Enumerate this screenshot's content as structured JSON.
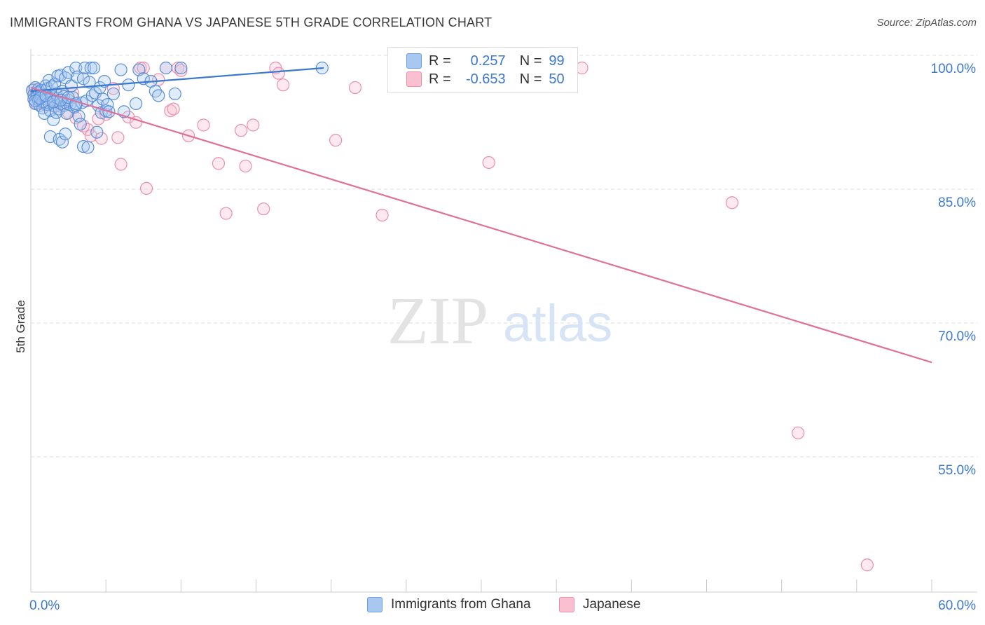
{
  "header": {
    "title": "IMMIGRANTS FROM GHANA VS JAPANESE 5TH GRADE CORRELATION CHART",
    "source": "Source: ZipAtlas.com"
  },
  "legend": {
    "rows": [
      {
        "r_label": "R =",
        "r_value": "0.257",
        "n_label": "N =",
        "n_value": "99",
        "color": "#a8c8f0",
        "border": "#6a9ee0"
      },
      {
        "r_label": "R =",
        "r_value": "-0.653",
        "n_label": "N =",
        "n_value": "50",
        "color": "#f8c0d0",
        "border": "#e890ab"
      }
    ]
  },
  "bottom_legend": [
    {
      "label": "Immigrants from Ghana",
      "color": "#a8c8f0",
      "border": "#6a9ee0"
    },
    {
      "label": "Japanese",
      "color": "#f8c0d0",
      "border": "#e890ab"
    }
  ],
  "watermark": {
    "zip": "ZIP",
    "atlas": "atlas"
  },
  "chart_data": {
    "type": "scatter",
    "title": "IMMIGRANTS FROM GHANA VS JAPANESE 5TH GRADE CORRELATION CHART",
    "xlabel": "",
    "ylabel": "5th Grade",
    "xlim": [
      0,
      60
    ],
    "ylim": [
      40,
      101
    ],
    "x_tick_labels": [
      "0.0%",
      "60.0%"
    ],
    "y_ticks": [
      55,
      70,
      85,
      100
    ],
    "y_tick_labels": [
      "55.0%",
      "70.0%",
      "85.0%",
      "100.0%"
    ],
    "grid": true,
    "colors": {
      "blue": "#3a78d0",
      "pink": "#e07098",
      "axis_text": "#3a78d0"
    },
    "series": [
      {
        "name": "Immigrants from Ghana",
        "color": "#6a9ee0",
        "trend": {
          "x": [
            0,
            19.5
          ],
          "y": [
            97.4,
            100.0
          ],
          "color": "#3a78d0"
        },
        "points": [
          [
            0.1,
            97.5
          ],
          [
            0.2,
            97.0
          ],
          [
            0.2,
            96.5
          ],
          [
            0.3,
            97.8
          ],
          [
            0.3,
            96.0
          ],
          [
            0.4,
            97.2
          ],
          [
            0.4,
            96.8
          ],
          [
            0.5,
            97.6
          ],
          [
            0.5,
            96.4
          ],
          [
            0.6,
            97.3
          ],
          [
            0.6,
            95.8
          ],
          [
            0.7,
            96.9
          ],
          [
            0.7,
            97.5
          ],
          [
            0.8,
            96.2
          ],
          [
            0.8,
            95.5
          ],
          [
            0.9,
            97.0
          ],
          [
            0.9,
            94.9
          ],
          [
            1.0,
            96.5
          ],
          [
            1.0,
            98.0
          ],
          [
            1.1,
            95.9
          ],
          [
            1.1,
            97.7
          ],
          [
            1.2,
            96.1
          ],
          [
            1.2,
            98.6
          ],
          [
            1.3,
            95.2
          ],
          [
            1.3,
            92.3
          ],
          [
            1.4,
            96.8
          ],
          [
            1.4,
            97.9
          ],
          [
            1.5,
            94.2
          ],
          [
            1.5,
            96.3
          ],
          [
            1.6,
            95.7
          ],
          [
            1.6,
            98.2
          ],
          [
            1.7,
            97.1
          ],
          [
            1.7,
            95.0
          ],
          [
            1.8,
            96.6
          ],
          [
            1.8,
            99.1
          ],
          [
            1.9,
            92.0
          ],
          [
            1.9,
            95.4
          ],
          [
            2.0,
            99.2
          ],
          [
            2.0,
            96.0
          ],
          [
            2.1,
            91.7
          ],
          [
            2.1,
            97.4
          ],
          [
            2.2,
            95.8
          ],
          [
            2.2,
            96.8
          ],
          [
            2.3,
            92.6
          ],
          [
            2.3,
            98.9
          ],
          [
            2.4,
            96.0
          ],
          [
            2.4,
            94.9
          ],
          [
            2.5,
            96.4
          ],
          [
            2.5,
            99.5
          ],
          [
            2.6,
            95.9
          ],
          [
            2.7,
            98.0
          ],
          [
            2.8,
            96.7
          ],
          [
            2.9,
            95.6
          ],
          [
            3.0,
            100.0
          ],
          [
            3.0,
            95.8
          ],
          [
            3.1,
            99.0
          ],
          [
            3.2,
            94.6
          ],
          [
            3.3,
            93.7
          ],
          [
            3.4,
            96.1
          ],
          [
            3.5,
            91.2
          ],
          [
            3.5,
            98.8
          ],
          [
            3.6,
            100.0
          ],
          [
            3.7,
            96.3
          ],
          [
            3.8,
            91.1
          ],
          [
            3.9,
            98.4
          ],
          [
            4.0,
            100.0
          ],
          [
            4.1,
            96.9
          ],
          [
            4.2,
            100.0
          ],
          [
            4.3,
            97.2
          ],
          [
            4.4,
            92.8
          ],
          [
            4.5,
            95.8
          ],
          [
            4.6,
            97.8
          ],
          [
            4.7,
            95.0
          ],
          [
            4.8,
            96.5
          ],
          [
            4.9,
            98.5
          ],
          [
            5.0,
            95.2
          ],
          [
            5.1,
            95.9
          ],
          [
            5.2,
            95.1
          ],
          [
            5.5,
            97.1
          ],
          [
            6.0,
            99.8
          ],
          [
            6.2,
            95.1
          ],
          [
            6.5,
            98.1
          ],
          [
            7.0,
            96.0
          ],
          [
            7.2,
            99.8
          ],
          [
            7.5,
            98.8
          ],
          [
            8.0,
            98.5
          ],
          [
            8.3,
            97.4
          ],
          [
            8.5,
            96.9
          ],
          [
            9.0,
            100.0
          ],
          [
            9.6,
            97.1
          ],
          [
            10.0,
            100.0
          ],
          [
            0.3,
            96.3
          ],
          [
            0.6,
            96.6
          ],
          [
            1.0,
            96.9
          ],
          [
            1.5,
            96.2
          ],
          [
            2.0,
            96.4
          ],
          [
            2.5,
            96.7
          ],
          [
            19.4,
            100.0
          ],
          [
            3.0,
            96.0
          ]
        ]
      },
      {
        "name": "Japanese",
        "color": "#e890ab",
        "trend": {
          "x": [
            0,
            60
          ],
          "y": [
            97.8,
            67.0
          ],
          "color": "#e07098"
        },
        "points": [
          [
            0.2,
            97.6
          ],
          [
            0.3,
            96.1
          ],
          [
            0.5,
            97.3
          ],
          [
            0.8,
            96.0
          ],
          [
            1.0,
            95.9
          ],
          [
            1.2,
            96.6
          ],
          [
            1.5,
            95.8
          ],
          [
            1.8,
            96.1
          ],
          [
            2.0,
            95.7
          ],
          [
            2.5,
            95.0
          ],
          [
            2.8,
            97.2
          ],
          [
            3.0,
            94.4
          ],
          [
            3.5,
            93.5
          ],
          [
            3.8,
            93.1
          ],
          [
            4.0,
            92.4
          ],
          [
            4.5,
            94.3
          ],
          [
            4.7,
            92.1
          ],
          [
            5.0,
            94.8
          ],
          [
            5.5,
            97.7
          ],
          [
            5.8,
            92.2
          ],
          [
            6.0,
            89.2
          ],
          [
            6.5,
            94.5
          ],
          [
            7.0,
            93.9
          ],
          [
            7.3,
            100.0
          ],
          [
            7.5,
            100.0
          ],
          [
            7.7,
            86.5
          ],
          [
            8.5,
            98.7
          ],
          [
            9.0,
            100.0
          ],
          [
            9.3,
            95.2
          ],
          [
            9.5,
            95.4
          ],
          [
            9.8,
            100.0
          ],
          [
            10.0,
            99.7
          ],
          [
            10.5,
            92.4
          ],
          [
            11.5,
            93.6
          ],
          [
            12.5,
            89.3
          ],
          [
            13.0,
            83.7
          ],
          [
            14.0,
            93.0
          ],
          [
            14.3,
            89.0
          ],
          [
            14.8,
            93.6
          ],
          [
            15.5,
            84.2
          ],
          [
            16.3,
            100.0
          ],
          [
            16.5,
            99.4
          ],
          [
            16.8,
            98.1
          ],
          [
            20.3,
            91.9
          ],
          [
            21.6,
            97.8
          ],
          [
            23.4,
            83.5
          ],
          [
            30.5,
            89.4
          ],
          [
            36.7,
            100.0
          ],
          [
            46.7,
            84.9
          ],
          [
            51.1,
            59.1
          ]
        ],
        "extra_points": [
          [
            55.7,
            44.3
          ]
        ]
      }
    ]
  }
}
